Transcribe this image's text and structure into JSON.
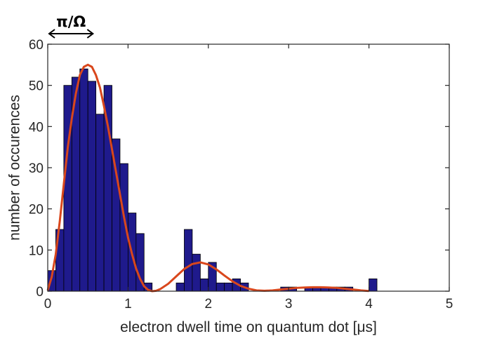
{
  "chart_data": {
    "type": "bar",
    "title": "",
    "xlabel": "electron dwell time on quantum dot [μs]",
    "ylabel": "number of occurences",
    "xlim": [
      0,
      5
    ],
    "ylim": [
      0,
      60
    ],
    "xticks": [
      0,
      1,
      2,
      3,
      4,
      5
    ],
    "yticks": [
      0,
      10,
      20,
      30,
      40,
      50,
      60
    ],
    "grid": false,
    "bin_width": 0.1,
    "bin_starts": [
      0.0,
      0.1,
      0.2,
      0.3,
      0.4,
      0.5,
      0.6,
      0.7,
      0.8,
      0.9,
      1.0,
      1.1,
      1.2,
      1.3,
      1.4,
      1.5,
      1.6,
      1.7,
      1.8,
      1.9,
      2.0,
      2.1,
      2.2,
      2.3,
      2.4,
      2.5,
      2.6,
      2.7,
      2.8,
      2.9,
      3.0,
      3.1,
      3.2,
      3.3,
      3.4,
      3.5,
      3.6,
      3.7,
      3.8,
      3.9,
      4.0
    ],
    "counts": [
      5,
      15,
      50,
      52,
      54,
      51,
      43,
      50,
      37,
      31,
      19,
      14,
      2,
      0,
      0,
      0,
      2,
      15,
      9,
      3,
      7,
      2,
      2,
      3,
      2,
      0,
      0,
      0,
      0,
      1,
      1,
      0,
      1,
      1,
      1,
      1,
      1,
      1,
      0,
      0,
      3
    ],
    "bar_color": "#1f1a8c",
    "fit_color": "#d9471c",
    "fit_curve": {
      "x": [
        0.0,
        0.05,
        0.1,
        0.15,
        0.2,
        0.25,
        0.3,
        0.35,
        0.4,
        0.45,
        0.5,
        0.55,
        0.6,
        0.65,
        0.7,
        0.75,
        0.8,
        0.85,
        0.9,
        0.95,
        1.0,
        1.05,
        1.1,
        1.15,
        1.2,
        1.25,
        1.3,
        1.35,
        1.4,
        1.5,
        1.6,
        1.7,
        1.8,
        1.9,
        2.0,
        2.1,
        2.2,
        2.3,
        2.4,
        2.5,
        2.6,
        2.7,
        2.8,
        2.9,
        3.0,
        3.1,
        3.2,
        3.3,
        3.4,
        3.5,
        3.6,
        3.7,
        3.8,
        3.9,
        4.0
      ],
      "y": [
        0.2,
        3.5,
        9,
        17,
        26,
        35,
        42,
        48,
        52.5,
        54.5,
        55,
        54.5,
        52.5,
        49.5,
        45,
        40,
        34.5,
        29,
        23.5,
        18,
        13,
        9,
        5.5,
        3,
        1.2,
        0.3,
        0.0,
        0.1,
        0.5,
        1.8,
        3.6,
        5.4,
        6.6,
        7.0,
        6.5,
        5.3,
        3.8,
        2.4,
        1.3,
        0.6,
        0.2,
        0.1,
        0.2,
        0.4,
        0.6,
        0.8,
        0.9,
        0.95,
        0.95,
        0.9,
        0.8,
        0.6,
        0.4,
        0.2,
        0.05
      ]
    },
    "annotation": {
      "text": "π/Ω",
      "x_from": 0.0,
      "x_to": 0.58
    }
  }
}
